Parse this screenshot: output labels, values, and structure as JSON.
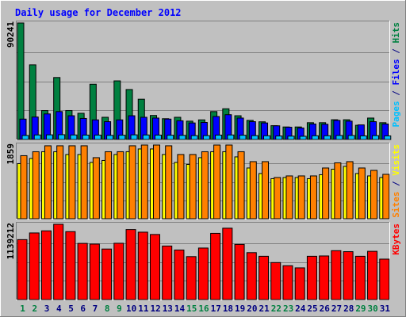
{
  "chart_data": {
    "title": "Daily usage for December 2012",
    "type": "bar",
    "categories": [
      "1",
      "2",
      "3",
      "4",
      "5",
      "6",
      "7",
      "8",
      "9",
      "10",
      "11",
      "12",
      "13",
      "14",
      "15",
      "16",
      "17",
      "18",
      "19",
      "20",
      "21",
      "22",
      "23",
      "24",
      "25",
      "26",
      "27",
      "28",
      "29",
      "30",
      "31"
    ],
    "weekend_days": [
      "1",
      "2",
      "8",
      "9",
      "15",
      "16",
      "22",
      "23",
      "29",
      "30"
    ],
    "panels": [
      {
        "id": "top",
        "max_label": "90241",
        "ymax": 90241,
        "legend": [
          {
            "text": "Pages",
            "color": "#00C0FF"
          },
          {
            "text": " / ",
            "color": "#000080"
          },
          {
            "text": "Files",
            "color": "#0000FF"
          },
          {
            "text": " / ",
            "color": "#000080"
          },
          {
            "text": "Hits",
            "color": "#008040"
          }
        ],
        "series": [
          {
            "name": "Hits",
            "color": "#008040",
            "values": [
              90241,
              57800,
              22400,
              48000,
              22400,
              20300,
              42800,
              17200,
              45400,
              38700,
              31200,
              18600,
              16100,
              17200,
              14200,
              15200,
              21600,
              23800,
              18400,
              14800,
              13700,
              10700,
              9700,
              9700,
              13000,
              13000,
              15300,
              15300,
              11000,
              16600,
              13000
            ]
          },
          {
            "name": "Files",
            "color": "#0000FF",
            "values": [
              15800,
              17400,
              19800,
              21600,
              18400,
              16300,
              15200,
              13800,
              15200,
              18400,
              17200,
              16600,
              15800,
              14500,
              12800,
              13200,
              17800,
              19200,
              16600,
              13800,
              12800,
              10600,
              9500,
              8900,
              12000,
              11800,
              14800,
              14200,
              11300,
              13800,
              12000
            ]
          },
          {
            "name": "Pages",
            "color": "#00C0FF",
            "values": [
              3100,
              3500,
              3600,
              3700,
              3500,
              3400,
              3400,
              3200,
              3300,
              3600,
              3500,
              3400,
              3300,
              3200,
              3000,
              3000,
              3400,
              3500,
              3300,
              3000,
              2900,
              2700,
              2600,
              2500,
              2900,
              2900,
              3100,
              3100,
              2800,
              3000,
              2800
            ]
          }
        ]
      },
      {
        "id": "middle",
        "max_label": "1859",
        "ymax": 1859,
        "legend": [
          {
            "text": "Sites",
            "color": "#FF8000"
          },
          {
            "text": " / ",
            "color": "#000080"
          },
          {
            "text": "Visits",
            "color": "#FFFF00"
          }
        ],
        "series": [
          {
            "name": "Visits",
            "color": "#FFFF00",
            "values": [
              1390,
              1520,
              1690,
              1690,
              1620,
              1620,
              1420,
              1470,
              1620,
              1690,
              1760,
              1760,
              1620,
              1420,
              1370,
              1540,
              1690,
              1690,
              1560,
              1280,
              1140,
              1010,
              1040,
              1040,
              1010,
              1110,
              1250,
              1320,
              1140,
              1080,
              1040
            ]
          },
          {
            "name": "Sites",
            "color": "#FF8000",
            "values": [
              1590,
              1690,
              1840,
              1840,
              1840,
              1840,
              1540,
              1690,
              1690,
              1840,
              1859,
              1859,
              1840,
              1620,
              1620,
              1690,
              1859,
              1859,
              1690,
              1440,
              1440,
              1040,
              1080,
              1080,
              1080,
              1280,
              1410,
              1440,
              1280,
              1220,
              1120
            ]
          }
        ]
      },
      {
        "id": "bottom",
        "max_label": "1139212",
        "ymax": 1139212,
        "legend": [
          {
            "text": "KBytes",
            "color": "#FF0000"
          }
        ],
        "series": [
          {
            "name": "KBytes",
            "color": "#FF0000",
            "values": [
              907000,
              1008000,
              1040000,
              1139212,
              1028000,
              850000,
              840000,
              765000,
              852000,
              1060000,
              1020000,
              985000,
              810000,
              750000,
              650000,
              780000,
              1002000,
              1080000,
              835000,
              710000,
              655000,
              560000,
              512000,
              480000,
              655000,
              660000,
              740000,
              725000,
              655000,
              730000,
              612000
            ]
          }
        ]
      }
    ]
  },
  "colors": {
    "background": "#C0C0C0",
    "title": "#0000FF",
    "axis_label": "#000000",
    "gridline": "#808080",
    "weekday_label": "#000080",
    "weekend_label": "#008040",
    "bar_outline": "#000000"
  }
}
